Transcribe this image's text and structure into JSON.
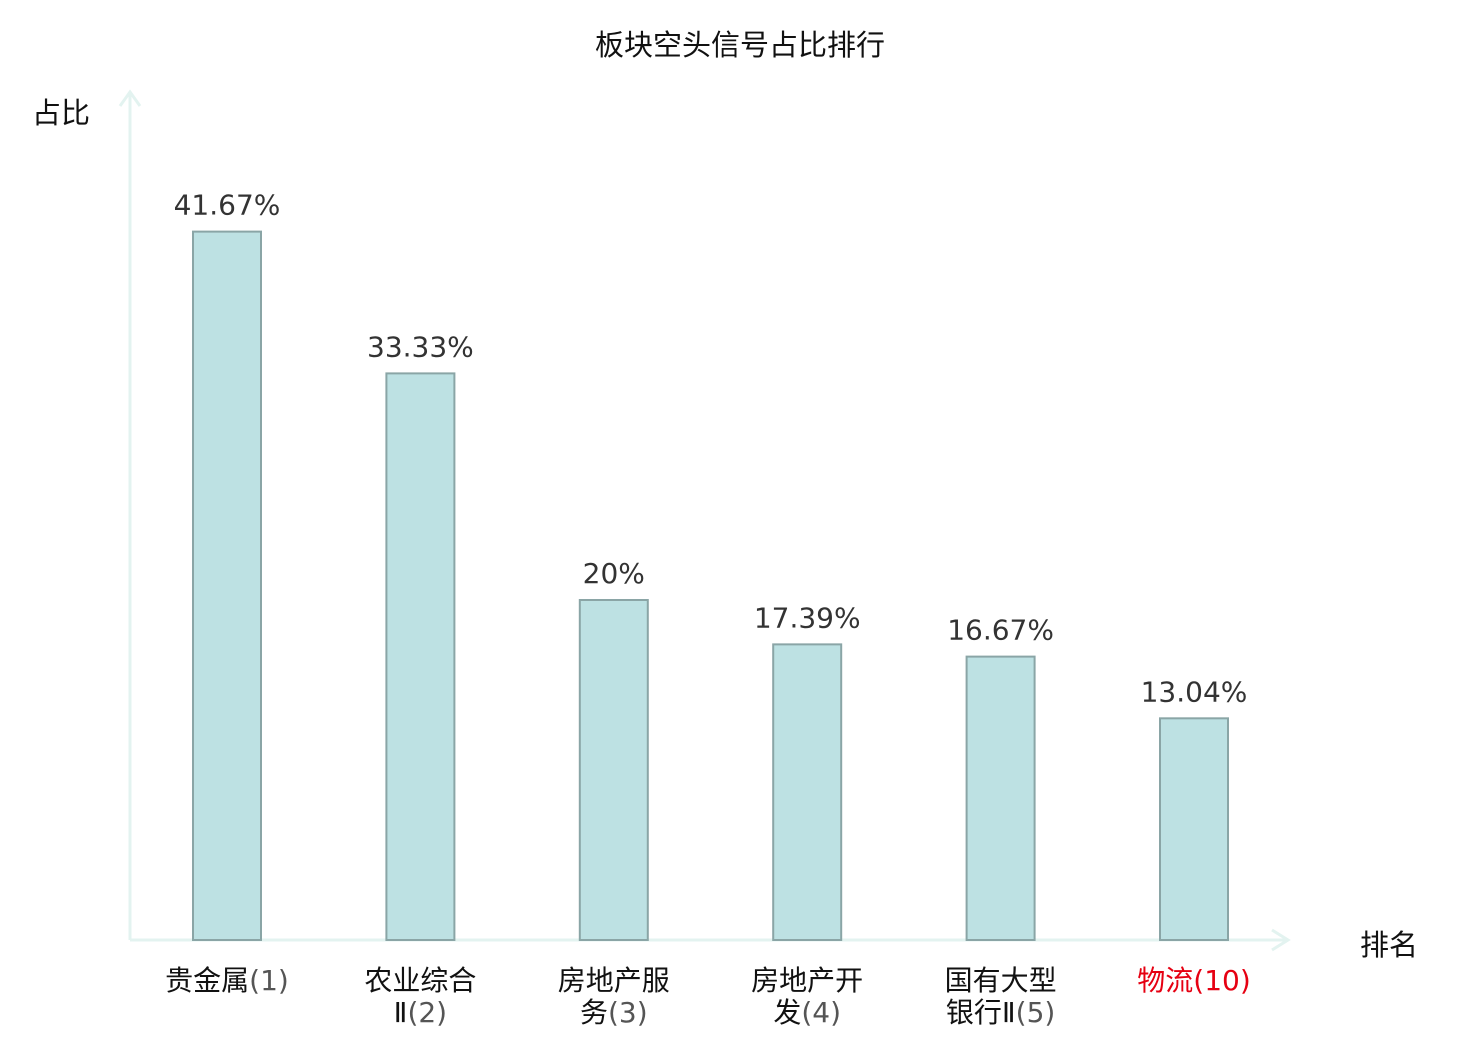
{
  "chart_data": {
    "type": "bar",
    "title": "板块空头信号占比排行",
    "ylabel": "占比",
    "xlabel": "排名",
    "categories": [
      {
        "line1": "贵金属",
        "line2": "",
        "rank": "(1)"
      },
      {
        "line1": "农业综合",
        "line2": "Ⅱ",
        "rank": "(2)"
      },
      {
        "line1": "房地产服",
        "line2": "务",
        "rank": "(3)"
      },
      {
        "line1": "房地产开",
        "line2": "发",
        "rank": "(4)"
      },
      {
        "line1": "国有大型",
        "line2": "银行Ⅱ",
        "rank": "(5)"
      },
      {
        "line1": "物流",
        "line2": "",
        "rank": "(10)",
        "highlight": true
      }
    ],
    "values": [
      41.67,
      33.33,
      20,
      17.39,
      16.67,
      13.04
    ],
    "value_labels": [
      "41.67%",
      "33.33%",
      "20%",
      "17.39%",
      "16.67%",
      "13.04%"
    ],
    "ylim": [
      0,
      50
    ],
    "grid": false,
    "colors": {
      "bar_fill": "#bde1e3",
      "bar_stroke": "#8aa5a6",
      "axis": "#e3f3f0",
      "highlight": "#e60012"
    }
  }
}
